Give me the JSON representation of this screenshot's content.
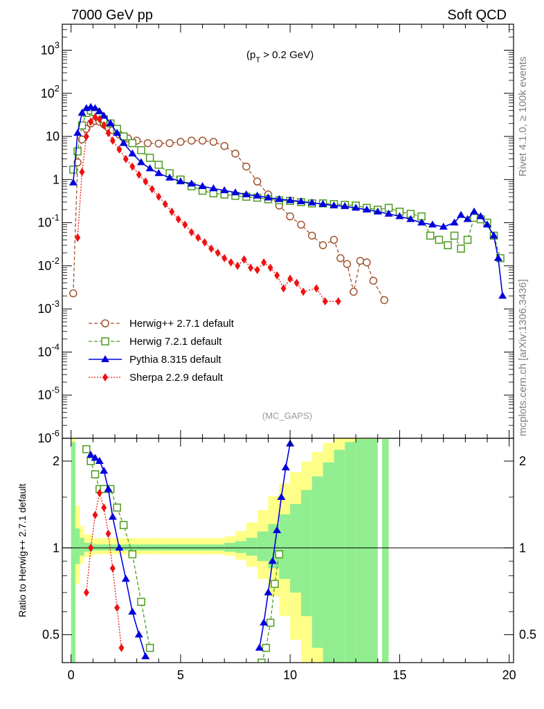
{
  "header": {
    "energy_label": "7000 GeV pp",
    "process_label": "Soft QCD",
    "cut_label": "(p",
    "cut_sub": "T",
    "cut_rest": " > 0.2 GeV)",
    "watermark": "(MC_GAPS)",
    "side_top": "Rivet 4.1.0, ≥ 100k events",
    "side_bottom": "mcplots.cern.ch [arXiv:1306.3436]"
  },
  "colors": {
    "herwigpp": "#a0522d",
    "herwig7": "#4a9a1c",
    "pythia": "#0000dd",
    "sherpa": "#ee1111",
    "band_inner": "#90ee90",
    "band_outer": "#ffff88"
  },
  "chart_data": [
    {
      "type": "line",
      "panel": "main",
      "yscale": "log",
      "xlim": [
        -0.4,
        20.2
      ],
      "ylim": [
        1e-06,
        4000
      ],
      "xlabel": "",
      "ylabel": "",
      "yticks": [
        "1",
        "10",
        "10^2",
        "10^3",
        "10^-1",
        "10^-2",
        "10^-3",
        "10^-4",
        "10^-5",
        "10^-6"
      ],
      "legend_position": "middle-left",
      "series": [
        {
          "key": "herwigpp",
          "name": "Herwig++ 2.7.1 default",
          "marker": "open-circle",
          "linestyle": "dashed",
          "x": [
            0.1,
            0.3,
            0.5,
            0.7,
            0.9,
            1.1,
            1.3,
            1.5,
            1.7,
            1.9,
            2.2,
            2.6,
            3.0,
            3.5,
            4.0,
            4.5,
            5.0,
            5.5,
            6.0,
            6.5,
            7.0,
            7.5,
            8.0,
            8.5,
            9.0,
            9.5,
            10.0,
            10.5,
            11.0,
            11.5,
            12.0,
            12.3,
            12.6,
            12.9,
            13.2,
            13.5,
            13.8,
            14.3
          ],
          "y": [
            0.0023,
            2.5,
            8.5,
            15,
            20,
            23,
            22,
            19,
            16,
            14,
            11,
            9,
            8,
            7,
            6.8,
            7,
            7.5,
            8,
            8,
            7.5,
            6,
            4,
            2,
            0.9,
            0.45,
            0.25,
            0.14,
            0.09,
            0.05,
            0.03,
            0.04,
            0.015,
            0.011,
            0.0025,
            0.013,
            0.012,
            0.0045,
            0.0016
          ]
        },
        {
          "key": "herwig7",
          "name": "Herwig 7.2.1 default",
          "marker": "open-square",
          "linestyle": "dashed",
          "x": [
            0.1,
            0.3,
            0.5,
            0.7,
            0.9,
            1.1,
            1.3,
            1.5,
            1.8,
            2.1,
            2.4,
            2.8,
            3.2,
            3.6,
            4.0,
            4.5,
            5.0,
            5.5,
            6.0,
            6.5,
            7.0,
            7.5,
            8.0,
            8.5,
            9.0,
            9.5,
            10.0,
            10.5,
            11.0,
            11.5,
            12.0,
            12.5,
            13.0,
            13.5,
            14.0,
            14.5,
            15.0,
            15.5,
            16.0,
            16.4,
            16.8,
            17.2,
            17.5,
            17.8,
            18.1,
            18.4,
            18.7,
            19.0,
            19.3,
            19.6
          ],
          "y": [
            1.7,
            4.5,
            18,
            35,
            40,
            37,
            30,
            25,
            20,
            15,
            10,
            7,
            4.8,
            3.2,
            2.2,
            1.4,
            1.0,
            0.7,
            0.55,
            0.48,
            0.45,
            0.42,
            0.4,
            0.38,
            0.35,
            0.33,
            0.32,
            0.3,
            0.28,
            0.28,
            0.27,
            0.26,
            0.25,
            0.22,
            0.2,
            0.22,
            0.18,
            0.16,
            0.14,
            0.05,
            0.04,
            0.03,
            0.05,
            0.025,
            0.04,
            0.13,
            0.12,
            0.1,
            0.05,
            0.015
          ]
        },
        {
          "key": "pythia",
          "name": "Pythia 8.315 default",
          "marker": "filled-triangle",
          "linestyle": "solid",
          "x": [
            0.1,
            0.3,
            0.5,
            0.7,
            0.9,
            1.1,
            1.3,
            1.5,
            1.8,
            2.1,
            2.4,
            2.8,
            3.2,
            3.6,
            4.0,
            4.5,
            5.0,
            5.5,
            6.0,
            6.5,
            7.0,
            7.5,
            8.0,
            8.5,
            9.0,
            9.5,
            10.0,
            10.5,
            11.0,
            11.5,
            12.0,
            12.5,
            13.0,
            13.5,
            14.0,
            14.5,
            15.0,
            15.5,
            16.0,
            16.5,
            17.0,
            17.5,
            17.8,
            18.1,
            18.4,
            18.7,
            19.0,
            19.3,
            19.5,
            19.7
          ],
          "y": [
            0.85,
            12,
            35,
            45,
            48,
            45,
            38,
            30,
            20,
            12,
            7,
            4,
            2.5,
            1.8,
            1.4,
            1.1,
            0.9,
            0.8,
            0.7,
            0.62,
            0.56,
            0.5,
            0.45,
            0.42,
            0.38,
            0.35,
            0.33,
            0.31,
            0.29,
            0.27,
            0.25,
            0.24,
            0.22,
            0.2,
            0.18,
            0.16,
            0.14,
            0.12,
            0.1,
            0.09,
            0.08,
            0.1,
            0.15,
            0.12,
            0.18,
            0.14,
            0.09,
            0.05,
            0.015,
            0.002
          ]
        },
        {
          "key": "sherpa",
          "name": "Sherpa 2.2.9 default",
          "marker": "filled-diamond",
          "linestyle": "dotted",
          "x": [
            0.3,
            0.5,
            0.7,
            0.9,
            1.1,
            1.3,
            1.5,
            1.7,
            1.9,
            2.2,
            2.5,
            2.8,
            3.1,
            3.4,
            3.7,
            4.0,
            4.3,
            4.6,
            4.9,
            5.2,
            5.5,
            5.8,
            6.1,
            6.4,
            6.7,
            7.0,
            7.3,
            7.6,
            7.9,
            8.2,
            8.5,
            8.8,
            9.1,
            9.4,
            9.7,
            10.0,
            10.3,
            10.6,
            11.2,
            11.6,
            12.2
          ],
          "y": [
            0.045,
            1.5,
            10,
            22,
            28,
            25,
            18,
            12,
            8,
            5,
            3,
            2,
            1.3,
            0.9,
            0.6,
            0.4,
            0.27,
            0.18,
            0.12,
            0.09,
            0.06,
            0.045,
            0.035,
            0.025,
            0.02,
            0.015,
            0.012,
            0.01,
            0.014,
            0.009,
            0.008,
            0.012,
            0.009,
            0.006,
            0.003,
            0.005,
            0.004,
            0.0025,
            0.003,
            0.0015,
            0.0015
          ]
        }
      ]
    },
    {
      "type": "line",
      "panel": "ratio",
      "yscale": "log",
      "xlim": [
        -0.4,
        20.2
      ],
      "ylim": [
        0.4,
        2.4
      ],
      "xticks": [
        0,
        5,
        10,
        15,
        20
      ],
      "yticks": [
        0.5,
        1,
        2
      ],
      "ylabel": "Ratio to Herwig++ 2.7.1 default",
      "reference_line": 1.0,
      "bands": {
        "bins": [
          [
            0.0,
            0.2
          ],
          [
            0.2,
            0.4
          ],
          [
            0.4,
            0.6
          ],
          [
            0.6,
            1.0
          ],
          [
            1.0,
            2.0
          ],
          [
            2.0,
            4.0
          ],
          [
            4.0,
            6.0
          ],
          [
            6.0,
            7.0
          ],
          [
            7.0,
            7.5
          ],
          [
            7.5,
            8.0
          ],
          [
            8.0,
            8.5
          ],
          [
            8.5,
            9.0
          ],
          [
            9.0,
            9.5
          ],
          [
            9.5,
            10.0
          ],
          [
            10.0,
            10.5
          ],
          [
            10.5,
            11.0
          ],
          [
            11.0,
            11.5
          ],
          [
            11.5,
            12.0
          ],
          [
            12.0,
            12.5
          ],
          [
            12.5,
            13.0
          ],
          [
            13.0,
            13.5
          ],
          [
            13.5,
            14.0
          ],
          [
            14.2,
            14.5
          ]
        ],
        "inner": [
          0.95,
          0.12,
          0.06,
          0.03,
          0.02,
          0.02,
          0.02,
          0.02,
          0.03,
          0.04,
          0.06,
          0.1,
          0.15,
          0.22,
          0.3,
          0.42,
          0.55,
          0.7,
          0.85,
          0.95,
          0.99,
          0.99,
          0.99
        ],
        "outer": [
          0.98,
          0.25,
          0.12,
          0.07,
          0.05,
          0.05,
          0.05,
          0.05,
          0.06,
          0.09,
          0.14,
          0.22,
          0.32,
          0.42,
          0.52,
          0.62,
          0.72,
          0.82,
          0.9,
          0.96,
          0.99,
          0.99,
          0.99
        ]
      },
      "series": [
        {
          "key": "herwig7",
          "name": "Herwig 7.2.1 default",
          "x": [
            0.7,
            0.9,
            1.1,
            1.3,
            1.5,
            1.8,
            2.1,
            2.4,
            2.8,
            3.2,
            3.6,
            8.7,
            8.9,
            9.1,
            9.3,
            9.5
          ],
          "y": [
            2.2,
            2.0,
            1.8,
            1.6,
            1.6,
            1.6,
            1.38,
            1.2,
            0.95,
            0.65,
            0.45,
            0.4,
            0.45,
            0.55,
            0.75,
            0.95
          ]
        },
        {
          "key": "pythia",
          "name": "Pythia 8.315 default",
          "x": [
            0.9,
            1.1,
            1.3,
            1.5,
            1.7,
            1.9,
            2.2,
            2.5,
            2.8,
            3.1,
            3.4,
            8.6,
            8.8,
            9.0,
            9.2,
            9.4,
            9.6,
            9.8,
            10.0
          ],
          "y": [
            2.1,
            2.05,
            2.0,
            1.85,
            1.6,
            1.28,
            1.0,
            0.78,
            0.6,
            0.5,
            0.42,
            0.45,
            0.55,
            0.7,
            0.9,
            1.15,
            1.5,
            1.9,
            2.3
          ]
        },
        {
          "key": "sherpa",
          "name": "Sherpa 2.2.9 default",
          "x": [
            0.7,
            0.9,
            1.1,
            1.3,
            1.5,
            1.7,
            1.9,
            2.1,
            2.3
          ],
          "y": [
            0.7,
            1.0,
            1.3,
            1.55,
            1.38,
            1.12,
            0.85,
            0.62,
            0.45
          ]
        }
      ]
    }
  ]
}
